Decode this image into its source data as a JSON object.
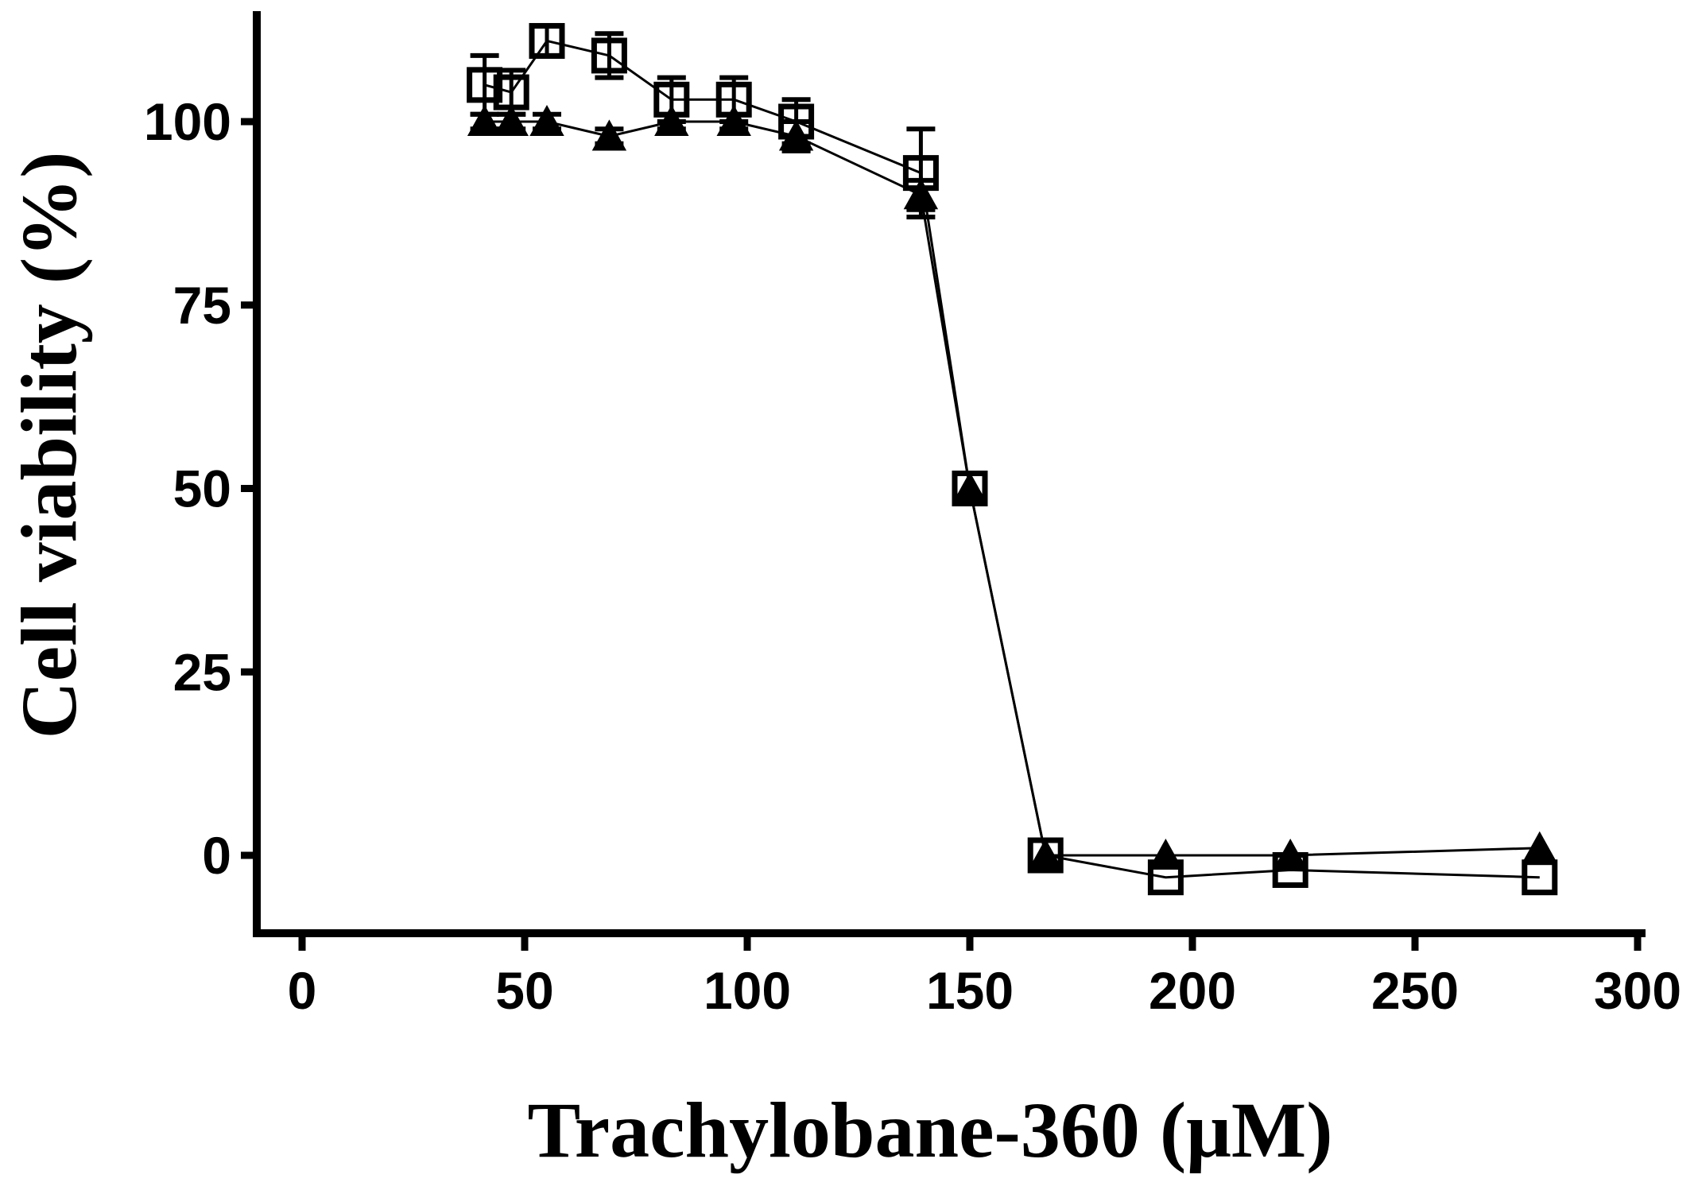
{
  "chart_data": {
    "type": "scatter",
    "title": "",
    "xlabel": "Trachylobane-360 (μM)",
    "ylabel": "Cell viability (%)",
    "xlim": [
      -10,
      300
    ],
    "ylim": [
      -10,
      115
    ],
    "x_ticks": [
      0,
      50,
      100,
      150,
      200,
      250,
      300
    ],
    "y_ticks": [
      0,
      25,
      50,
      75,
      100
    ],
    "x_tick_labels": [
      "0",
      "50",
      "100",
      "150",
      "200",
      "250",
      "300"
    ],
    "y_tick_labels": [
      "0",
      "25",
      "50",
      "75",
      "100"
    ],
    "grid": false,
    "series": [
      {
        "marker": "open-square",
        "color": "#000000",
        "x": [
          41,
          47,
          55,
          69,
          83,
          97,
          111,
          139,
          150,
          167,
          194,
          222,
          278
        ],
        "y": [
          105,
          104,
          111,
          109,
          103,
          103,
          100,
          93,
          50,
          0,
          -3,
          -2,
          -3
        ],
        "error": [
          4,
          3,
          2,
          3,
          3,
          3,
          3,
          6,
          0,
          0,
          0,
          0,
          0
        ]
      },
      {
        "marker": "filled-triangle",
        "color": "#000000",
        "x": [
          41,
          47,
          55,
          69,
          83,
          97,
          111,
          139,
          150,
          167,
          194,
          222,
          278
        ],
        "y": [
          100,
          100,
          100,
          98,
          100,
          100,
          98,
          90,
          50,
          0,
          0,
          0,
          1
        ],
        "error": [
          1,
          1,
          1,
          1,
          1,
          1,
          2,
          2,
          0,
          0,
          0,
          0,
          0
        ]
      }
    ]
  }
}
